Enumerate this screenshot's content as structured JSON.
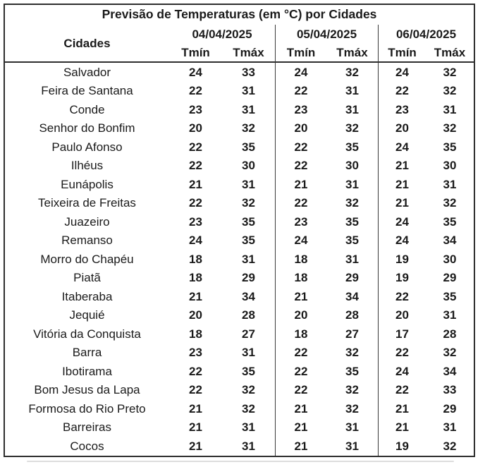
{
  "chart_data": {
    "type": "table",
    "title": "Previsão de Temperaturas (em °C) por Cidades",
    "row_header_label": "Cidades",
    "date_groups": [
      "04/04/2025",
      "05/04/2025",
      "06/04/2025"
    ],
    "measure_labels": [
      "Tmín",
      "Tmáx"
    ],
    "rows": [
      {
        "city": "Salvador",
        "temps": [
          24,
          33,
          24,
          32,
          24,
          32
        ]
      },
      {
        "city": "Feira de Santana",
        "temps": [
          22,
          31,
          22,
          31,
          22,
          32
        ]
      },
      {
        "city": "Conde",
        "temps": [
          23,
          31,
          23,
          31,
          23,
          31
        ]
      },
      {
        "city": "Senhor do Bonfim",
        "temps": [
          20,
          32,
          20,
          32,
          20,
          32
        ]
      },
      {
        "city": "Paulo Afonso",
        "temps": [
          22,
          35,
          22,
          35,
          24,
          35
        ]
      },
      {
        "city": "Ilhéus",
        "temps": [
          22,
          30,
          22,
          30,
          21,
          30
        ]
      },
      {
        "city": "Eunápolis",
        "temps": [
          21,
          31,
          21,
          31,
          21,
          31
        ]
      },
      {
        "city": "Teixeira de Freitas",
        "temps": [
          22,
          32,
          22,
          32,
          21,
          32
        ]
      },
      {
        "city": "Juazeiro",
        "temps": [
          23,
          35,
          23,
          35,
          24,
          35
        ]
      },
      {
        "city": "Remanso",
        "temps": [
          24,
          35,
          24,
          35,
          24,
          34
        ]
      },
      {
        "city": "Morro do Chapéu",
        "temps": [
          18,
          31,
          18,
          31,
          19,
          30
        ]
      },
      {
        "city": "Piatã",
        "temps": [
          18,
          29,
          18,
          29,
          19,
          29
        ]
      },
      {
        "city": "Itaberaba",
        "temps": [
          21,
          34,
          21,
          34,
          22,
          35
        ]
      },
      {
        "city": "Jequié",
        "temps": [
          20,
          28,
          20,
          28,
          20,
          31
        ]
      },
      {
        "city": "Vitória da Conquista",
        "temps": [
          18,
          27,
          18,
          27,
          17,
          28
        ]
      },
      {
        "city": "Barra",
        "temps": [
          23,
          31,
          22,
          32,
          22,
          32
        ]
      },
      {
        "city": "Ibotirama",
        "temps": [
          22,
          35,
          22,
          35,
          24,
          34
        ]
      },
      {
        "city": "Bom Jesus da Lapa",
        "temps": [
          22,
          32,
          22,
          32,
          22,
          33
        ]
      },
      {
        "city": "Formosa do Rio Preto",
        "temps": [
          21,
          32,
          21,
          32,
          21,
          29
        ]
      },
      {
        "city": "Barreiras",
        "temps": [
          21,
          31,
          21,
          31,
          21,
          31
        ]
      },
      {
        "city": "Cocos",
        "temps": [
          21,
          31,
          21,
          31,
          19,
          32
        ]
      }
    ]
  },
  "colors": {
    "border": "#2e2e2e",
    "separator_line": "#3a3a3a",
    "text": "#1a1a1a",
    "background": "#ffffff"
  }
}
